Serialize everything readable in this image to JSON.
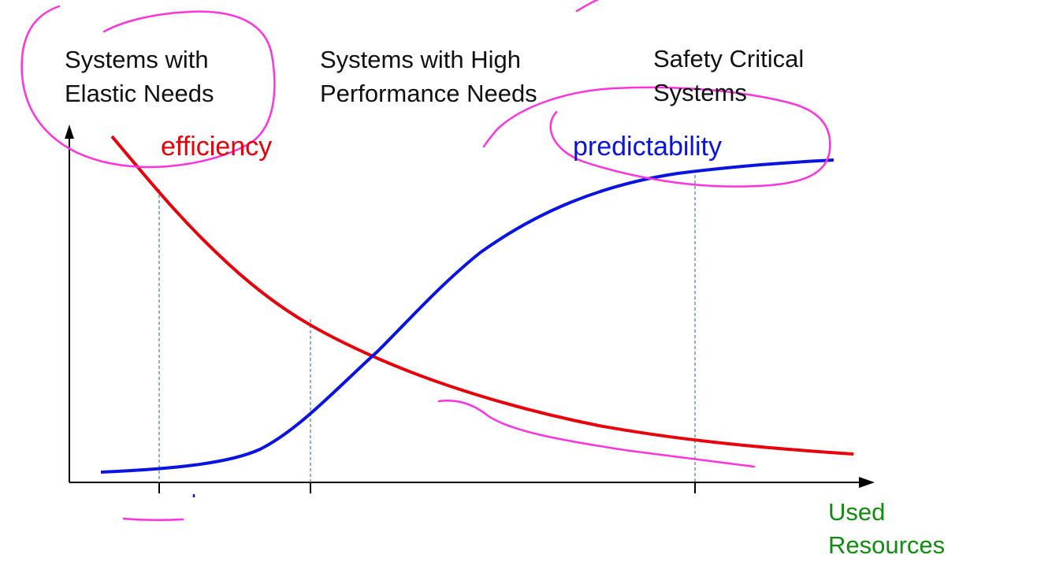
{
  "categories": [
    {
      "line1": "Systems with",
      "line2": "Elastic Needs"
    },
    {
      "line1": "Systems with High",
      "line2": "Performance Needs"
    },
    {
      "line1": "Safety Critical",
      "line2": "Systems"
    }
  ],
  "curves": {
    "efficiency": {
      "label": "efficiency",
      "color": "#e8000b"
    },
    "predictability": {
      "label": "predictability",
      "color": "#0a14e0"
    }
  },
  "x_axis": {
    "label_line1": "Used",
    "label_line2": "Resources",
    "color": "#118c11"
  },
  "annotation_color": "#ff33dd",
  "guide_color": "#4f82c6",
  "axis_color": "#000000"
}
